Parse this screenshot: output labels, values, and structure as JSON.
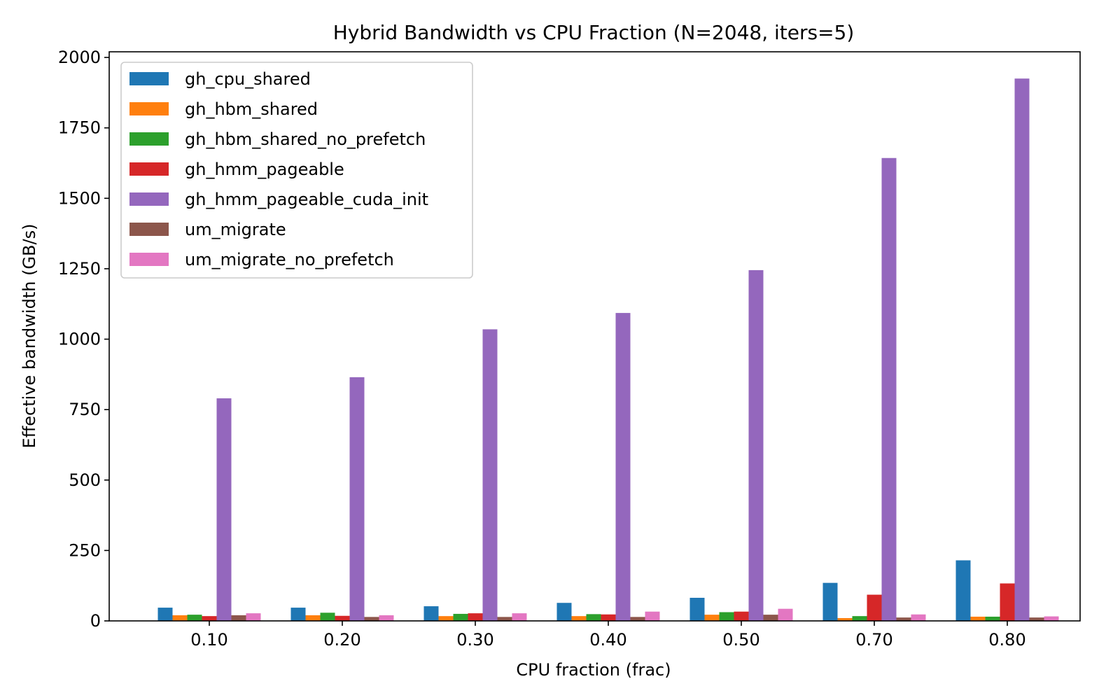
{
  "chart_data": {
    "type": "bar",
    "title": "Hybrid Bandwidth vs CPU Fraction (N=2048, iters=5)",
    "xlabel": "CPU fraction (frac)",
    "ylabel": "Effective bandwidth (GB/s)",
    "categories": [
      "0.10",
      "0.20",
      "0.30",
      "0.40",
      "0.50",
      "0.70",
      "0.80"
    ],
    "ylim": [
      0,
      2020
    ],
    "yticks": [
      0,
      250,
      500,
      750,
      1000,
      1250,
      1500,
      1750,
      2000
    ],
    "legend_position": "top-left",
    "grid": false,
    "series": [
      {
        "name": "gh_cpu_shared",
        "color": "#1f77b4",
        "values": [
          47,
          47,
          52,
          64,
          82,
          135,
          215
        ]
      },
      {
        "name": "gh_hbm_shared",
        "color": "#ff7f0e",
        "values": [
          20,
          20,
          17,
          17,
          22,
          10,
          15
        ]
      },
      {
        "name": "gh_hbm_shared_no_prefetch",
        "color": "#2ca02c",
        "values": [
          22,
          29,
          25,
          24,
          31,
          17,
          15
        ]
      },
      {
        "name": "gh_hmm_pageable",
        "color": "#d62728",
        "values": [
          17,
          18,
          27,
          23,
          33,
          93,
          133
        ]
      },
      {
        "name": "gh_hmm_pageable_cuda_init",
        "color": "#9467bd",
        "values": [
          790,
          865,
          1035,
          1093,
          1245,
          1643,
          1925
        ]
      },
      {
        "name": "um_migrate",
        "color": "#8c564b",
        "values": [
          20,
          14,
          14,
          14,
          22,
          12,
          12
        ]
      },
      {
        "name": "um_migrate_no_prefetch",
        "color": "#e377c2",
        "values": [
          27,
          20,
          27,
          33,
          43,
          23,
          16
        ]
      }
    ]
  }
}
